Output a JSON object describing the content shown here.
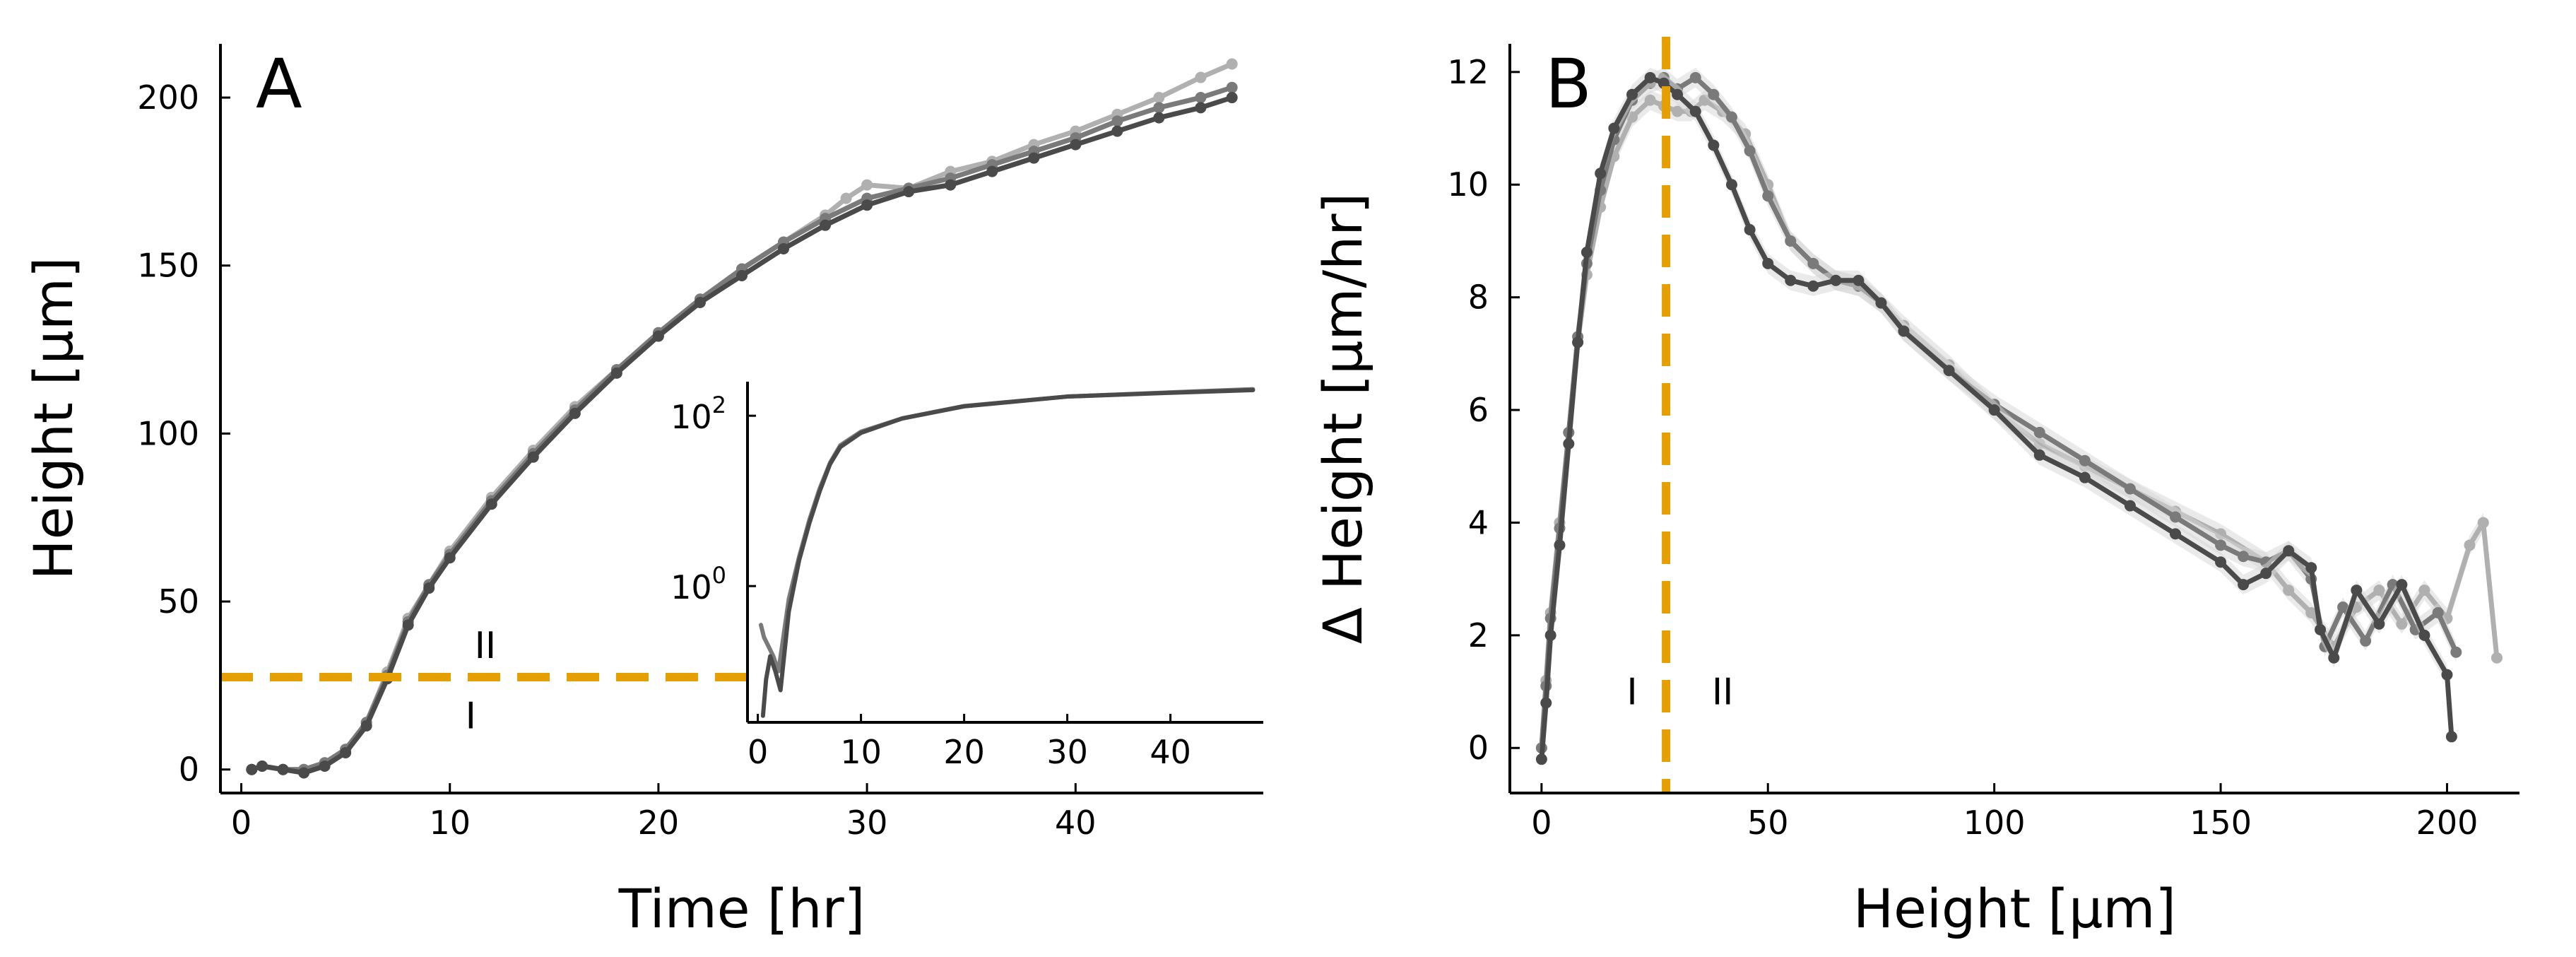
{
  "colors": {
    "axis": "#000000",
    "threshold": "#E69F00",
    "series_dark": "#4a4a4a",
    "series_mid": "#7a7a7a",
    "series_light": "#b0b0b0",
    "band": "#d6d6d6"
  },
  "chart_data": [
    {
      "id": "A",
      "type": "line",
      "panel_label": "A",
      "xlabel": "Time [hr]",
      "ylabel": "Height [μm]",
      "xlim": [
        -1,
        49
      ],
      "ylim": [
        -7,
        216
      ],
      "xticks": [
        0,
        10,
        20,
        30,
        40
      ],
      "yticks": [
        0,
        50,
        100,
        150,
        200
      ],
      "xtick_labels": [
        "0",
        "10",
        "20",
        "30",
        "40"
      ],
      "ytick_labels": [
        "0",
        "50",
        "100",
        "150",
        "200"
      ],
      "grid": false,
      "threshold_y": 27.5,
      "phase_labels": [
        {
          "text": "I",
          "x": 11,
          "y": 16
        },
        {
          "text": "II",
          "x": 11.7,
          "y": 37
        }
      ],
      "series": [
        {
          "color_key": "series_light",
          "x": [
            0.5,
            1,
            2,
            3,
            4,
            5,
            6,
            7,
            8,
            9,
            10,
            12,
            14,
            16,
            18,
            20,
            22,
            24,
            26,
            28,
            29,
            30,
            32,
            34,
            36,
            38,
            40,
            42,
            44,
            46,
            47.5
          ],
          "y": [
            0,
            1,
            0,
            0,
            2,
            6,
            14,
            29,
            45,
            55,
            65,
            81,
            95,
            108,
            119,
            130,
            140,
            149,
            157,
            165,
            170,
            174,
            173,
            178,
            181,
            186,
            190,
            195,
            200,
            206,
            210
          ]
        },
        {
          "color_key": "series_mid",
          "x": [
            0.5,
            1,
            2,
            3,
            4,
            5,
            6,
            7,
            8,
            9,
            10,
            12,
            14,
            16,
            18,
            20,
            22,
            24,
            26,
            28,
            30,
            32,
            34,
            36,
            38,
            40,
            42,
            44,
            46,
            47.5
          ],
          "y": [
            0,
            1,
            0,
            0,
            2,
            6,
            14,
            28,
            44,
            55,
            64,
            80,
            94,
            107,
            119,
            130,
            140,
            149,
            157,
            164,
            170,
            173,
            176,
            180,
            184,
            188,
            193,
            197,
            200,
            203
          ]
        },
        {
          "color_key": "series_dark",
          "x": [
            0.5,
            1,
            2,
            3,
            4,
            5,
            6,
            7,
            8,
            9,
            10,
            12,
            14,
            16,
            18,
            20,
            22,
            24,
            26,
            28,
            30,
            32,
            34,
            36,
            38,
            40,
            42,
            44,
            46,
            47.5
          ],
          "y": [
            0,
            1,
            0,
            -1,
            1,
            5,
            13,
            27,
            43,
            54,
            63,
            79,
            93,
            106,
            118,
            129,
            139,
            147,
            155,
            162,
            168,
            172,
            174,
            178,
            182,
            186,
            190,
            194,
            197,
            200
          ]
        }
      ],
      "inset": {
        "type": "line",
        "yscale": "log",
        "xlim": [
          -1,
          49
        ],
        "ylim_log10": [
          -1.6,
          2.4
        ],
        "xticks": [
          0,
          10,
          20,
          30,
          40
        ],
        "xtick_labels": [
          "0",
          "10",
          "20",
          "30",
          "40"
        ],
        "yticks_log10": [
          0,
          2
        ],
        "ytick_labels": [
          {
            "base": "10",
            "exp": "0"
          },
          {
            "base": "10",
            "exp": "2"
          }
        ],
        "series": [
          {
            "color_key": "series_mid",
            "x": [
              0.3,
              0.6,
              1,
              1.5,
              2,
              3,
              4,
              5,
              6,
              7,
              8,
              10,
              14,
              20,
              30,
              40,
              48
            ],
            "y": [
              0.35,
              0.25,
              0.2,
              0.15,
              0.1,
              0.7,
              2.2,
              6,
              14,
              28,
              45,
              65,
              93,
              130,
              168,
              188,
              205
            ]
          },
          {
            "color_key": "series_dark",
            "x": [
              0.5,
              0.8,
              1.2,
              1.7,
              2.2,
              3,
              4,
              5,
              6,
              7,
              8,
              10,
              14,
              20,
              30,
              40,
              48
            ],
            "y": [
              0.03,
              0.08,
              0.15,
              0.1,
              0.06,
              0.5,
              2,
              5.5,
              13,
              27,
              43,
              63,
              93,
              129,
              168,
              186,
              200
            ]
          }
        ]
      }
    },
    {
      "id": "B",
      "type": "line",
      "panel_label": "B",
      "xlabel": "Height [μm]",
      "ylabel": "Δ Height [μm/hr]",
      "xlim": [
        -7,
        216
      ],
      "ylim": [
        -0.8,
        12.5
      ],
      "xticks": [
        0,
        50,
        100,
        150,
        200
      ],
      "yticks": [
        0,
        2,
        4,
        6,
        8,
        10,
        12
      ],
      "xtick_labels": [
        "0",
        "50",
        "100",
        "150",
        "200"
      ],
      "ytick_labels": [
        "0",
        "2",
        "4",
        "6",
        "8",
        "10",
        "12"
      ],
      "grid": false,
      "threshold_x": 27.5,
      "phase_labels": [
        {
          "text": "I",
          "x": 20,
          "y": 1
        },
        {
          "text": "II",
          "x": 40,
          "y": 1
        }
      ],
      "series": [
        {
          "color_key": "series_light",
          "x": [
            0,
            1,
            2,
            4,
            6,
            8,
            10,
            13,
            16,
            20,
            24,
            27,
            30,
            33,
            36,
            40,
            45,
            50,
            55,
            60,
            65,
            70,
            75,
            80,
            90,
            100,
            110,
            120,
            130,
            140,
            150,
            160,
            165,
            170,
            175,
            180,
            185,
            190,
            195,
            200,
            205,
            208,
            211
          ],
          "y": [
            0,
            1.2,
            2.4,
            4,
            5.6,
            7.2,
            8.4,
            9.6,
            10.5,
            11.2,
            11.5,
            11.4,
            11.3,
            11.3,
            11.5,
            11.3,
            10.9,
            10.0,
            9.0,
            8.6,
            8.3,
            8.2,
            7.9,
            7.5,
            6.8,
            6.0,
            5.4,
            5.0,
            4.6,
            4.2,
            3.8,
            3.3,
            2.8,
            2.4,
            1.8,
            2.5,
            2.8,
            2.2,
            2.8,
            2.3,
            3.6,
            4.0,
            1.6
          ]
        },
        {
          "color_key": "series_mid",
          "x": [
            0,
            1,
            2,
            4,
            6,
            8,
            10,
            13,
            16,
            20,
            24,
            27,
            30,
            34,
            38,
            42,
            46,
            50,
            55,
            60,
            65,
            70,
            75,
            80,
            90,
            100,
            110,
            120,
            130,
            140,
            150,
            155,
            160,
            165,
            170,
            173,
            177,
            182,
            188,
            193,
            198,
            202
          ],
          "y": [
            0,
            1.1,
            2.3,
            3.9,
            5.6,
            7.3,
            8.6,
            9.9,
            10.8,
            11.5,
            11.8,
            11.9,
            11.7,
            11.9,
            11.6,
            11.2,
            10.6,
            9.8,
            9.0,
            8.6,
            8.3,
            8.2,
            7.9,
            7.4,
            6.7,
            6.1,
            5.6,
            5.1,
            4.6,
            4.1,
            3.6,
            3.4,
            3.3,
            3.5,
            3.0,
            1.8,
            2.5,
            1.9,
            2.9,
            2.1,
            2.4,
            1.7
          ]
        },
        {
          "color_key": "series_dark",
          "x": [
            0,
            1,
            2,
            4,
            6,
            8,
            10,
            13,
            16,
            20,
            24,
            27,
            30,
            34,
            38,
            42,
            46,
            50,
            55,
            60,
            65,
            70,
            75,
            80,
            90,
            100,
            110,
            120,
            130,
            140,
            150,
            155,
            160,
            165,
            170,
            172,
            175,
            180,
            185,
            190,
            195,
            200,
            201
          ],
          "y": [
            -0.2,
            0.8,
            2.0,
            3.6,
            5.4,
            7.2,
            8.8,
            10.2,
            11.0,
            11.6,
            11.9,
            11.8,
            11.6,
            11.3,
            10.7,
            10.0,
            9.2,
            8.6,
            8.3,
            8.2,
            8.3,
            8.3,
            7.9,
            7.4,
            6.7,
            6.0,
            5.2,
            4.8,
            4.3,
            3.8,
            3.3,
            2.9,
            3.1,
            3.5,
            3.2,
            2.1,
            1.6,
            2.8,
            2.2,
            2.9,
            2.0,
            1.3,
            0.2
          ]
        }
      ]
    }
  ]
}
